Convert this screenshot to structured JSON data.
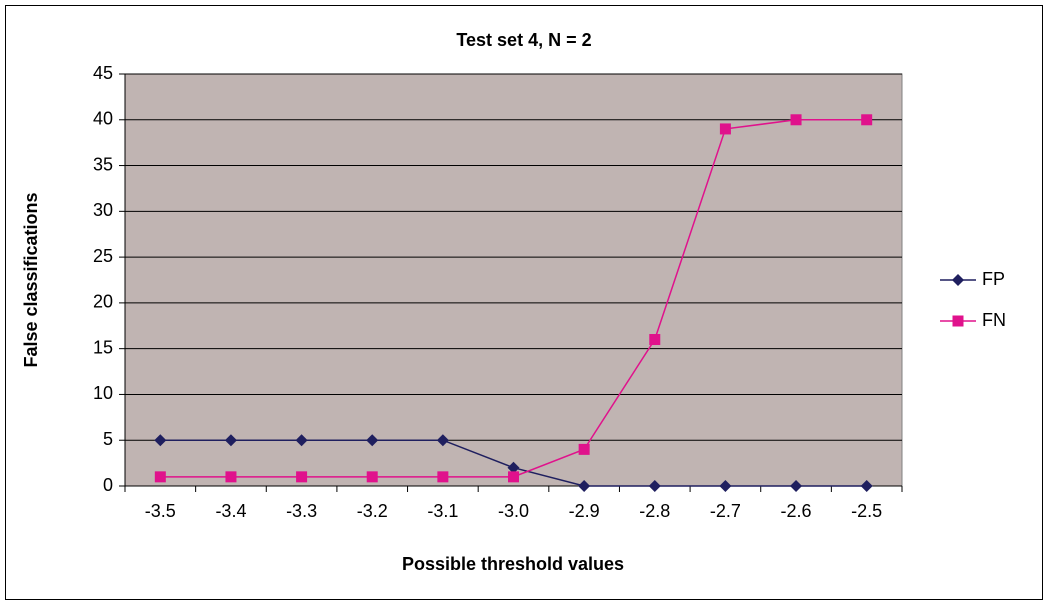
{
  "chart_data": {
    "type": "line",
    "title": "Test set 4, N = 2",
    "x_label": "Possible threshold values",
    "y_label": "False classifications",
    "categories": [
      "-3.5",
      "-3.4",
      "-3.3",
      "-3.2",
      "-3.1",
      "-3.0",
      "-2.9",
      "-2.8",
      "-2.7",
      "-2.6",
      "-2.5"
    ],
    "series": [
      {
        "name": "FP",
        "color": "#1f1f5f",
        "marker": "diamond",
        "values": [
          5,
          5,
          5,
          5,
          5,
          2,
          0,
          0,
          0,
          0,
          0
        ]
      },
      {
        "name": "FN",
        "color": "#e0128c",
        "marker": "square",
        "values": [
          1,
          1,
          1,
          1,
          1,
          1,
          4,
          16,
          39,
          40,
          40
        ]
      }
    ],
    "ylim": [
      0,
      45
    ],
    "yticks": [
      0,
      5,
      10,
      15,
      20,
      25,
      30,
      35,
      40,
      45
    ],
    "grid": true,
    "legend": "right",
    "plot_background": "#c0b4b2"
  }
}
